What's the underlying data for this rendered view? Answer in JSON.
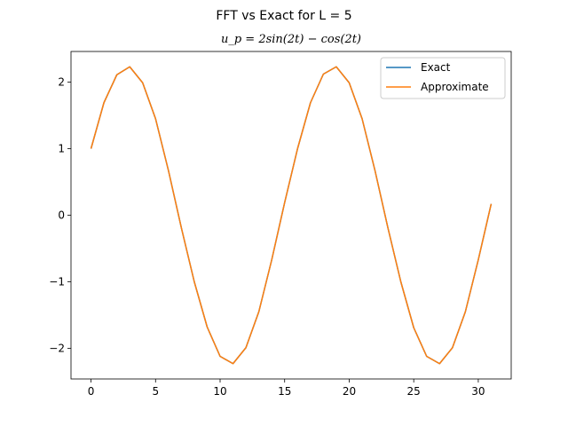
{
  "chart_data": {
    "type": "line",
    "title": "FFT vs Exact for L = 5",
    "subtitle": "u_p = 2sin(2t) − cos(2t)",
    "xlabel": "",
    "ylabel": "",
    "xlim": [
      -1.55,
      32.55
    ],
    "ylim": [
      -2.46,
      2.46
    ],
    "xticks": [
      0,
      5,
      10,
      15,
      20,
      25,
      30
    ],
    "xtick_labels": [
      "0",
      "5",
      "10",
      "15",
      "20",
      "25",
      "30"
    ],
    "yticks": [
      -2,
      -1,
      0,
      1,
      2
    ],
    "ytick_labels": [
      "−2",
      "−1",
      "0",
      "1",
      "2"
    ],
    "grid": false,
    "legend_position": "top-right",
    "x": [
      0,
      1,
      2,
      3,
      4,
      5,
      6,
      7,
      8,
      9,
      10,
      11,
      12,
      13,
      14,
      15,
      16,
      17,
      18,
      19,
      20,
      21,
      22,
      23,
      24,
      25,
      26,
      27,
      28,
      29,
      30,
      31
    ],
    "series": [
      {
        "name": "Exact",
        "color": "#1f77b4",
        "values": [
          1.0,
          1.69,
          2.11,
          2.23,
          1.99,
          1.45,
          0.67,
          -0.19,
          -1.0,
          -1.68,
          -2.12,
          -2.23,
          -1.99,
          -1.45,
          -0.67,
          0.19,
          1.0,
          1.69,
          2.12,
          2.23,
          1.99,
          1.45,
          0.67,
          -0.19,
          -1.0,
          -1.69,
          -2.12,
          -2.23,
          -1.99,
          -1.45,
          -0.67,
          0.17
        ]
      },
      {
        "name": "Approximate",
        "color": "#ff7f0e",
        "values": [
          1.0,
          1.69,
          2.11,
          2.23,
          1.99,
          1.45,
          0.67,
          -0.19,
          -1.0,
          -1.68,
          -2.12,
          -2.23,
          -1.99,
          -1.45,
          -0.67,
          0.19,
          1.0,
          1.69,
          2.12,
          2.23,
          1.99,
          1.45,
          0.67,
          -0.19,
          -1.0,
          -1.69,
          -2.12,
          -2.23,
          -1.99,
          -1.45,
          -0.67,
          0.17
        ]
      }
    ]
  }
}
